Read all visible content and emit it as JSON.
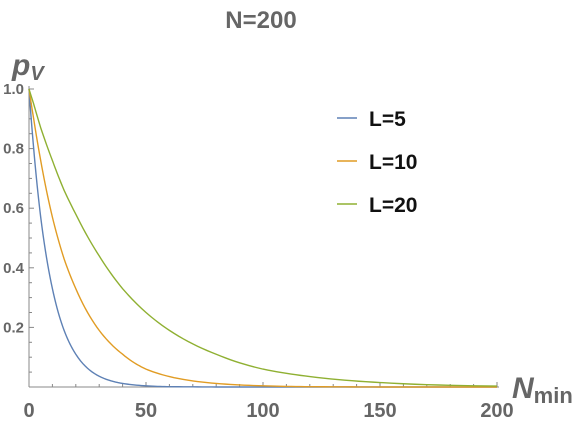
{
  "chart_data": {
    "type": "line",
    "title": "N=200",
    "xlabel": {
      "main": "N",
      "sub": "min"
    },
    "ylabel": {
      "main": "p",
      "sub": "V"
    },
    "xlim": [
      0,
      200
    ],
    "ylim": [
      0,
      1.0
    ],
    "x_ticks": [
      0,
      50,
      100,
      150,
      200
    ],
    "x_tick_labels": [
      "0",
      "50",
      "100",
      "150",
      "200"
    ],
    "y_ticks": [
      0.2,
      0.4,
      0.6,
      0.8,
      1.0
    ],
    "y_tick_labels": [
      "0.2",
      "0.4",
      "0.6",
      "0.8",
      "1.0"
    ],
    "grid": false,
    "legend_position": "top-right",
    "x": [
      0,
      2,
      5,
      10,
      15,
      20,
      30,
      40,
      50,
      60,
      80,
      100,
      120,
      150,
      200
    ],
    "series": [
      {
        "name": "L=5",
        "color": "#5e81b5",
        "values": [
          1.0,
          0.8,
          0.57,
          0.33,
          0.19,
          0.11,
          0.036,
          0.012,
          0.004,
          0.001,
          0.0,
          0.0,
          0.0,
          0.0,
          0.0
        ]
      },
      {
        "name": "L=10",
        "color": "#e19c24",
        "values": [
          1.0,
          0.9,
          0.76,
          0.57,
          0.43,
          0.33,
          0.19,
          0.11,
          0.06,
          0.035,
          0.012,
          0.004,
          0.001,
          0.0,
          0.0
        ]
      },
      {
        "name": "L=20",
        "color": "#8fb032",
        "values": [
          1.0,
          0.95,
          0.87,
          0.76,
          0.66,
          0.58,
          0.44,
          0.33,
          0.25,
          0.19,
          0.11,
          0.06,
          0.035,
          0.015,
          0.003
        ]
      }
    ]
  }
}
